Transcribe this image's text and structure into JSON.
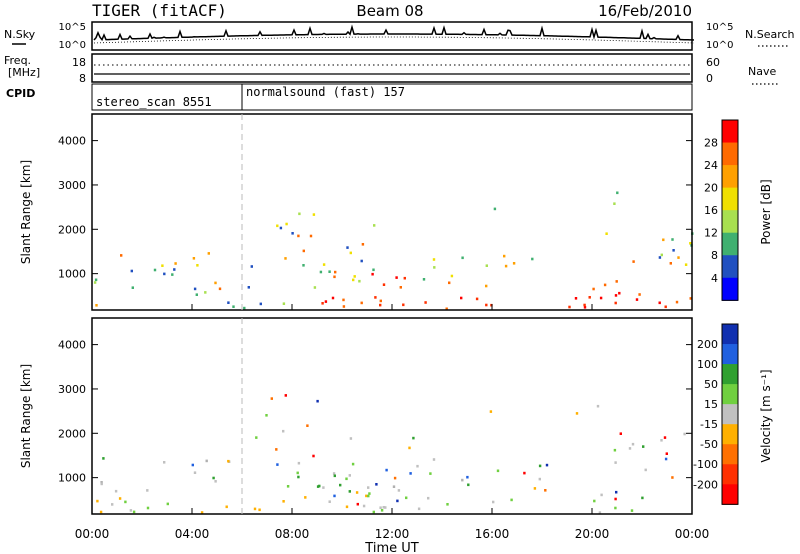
{
  "header": {
    "station": "TIGER (fitACF)",
    "beam": "Beam 08",
    "date": "16/Feb/2010"
  },
  "noise_panel": {
    "left_label": "N.Sky",
    "right_label": "N.Search",
    "left_ticks": [
      "10^5",
      "10^0"
    ],
    "right_ticks": [
      "10^5",
      "10^0"
    ]
  },
  "freq_panel": {
    "left_label_line1": "Freq.",
    "left_label_line2": "[MHz]",
    "right_label": "Nave",
    "left_ticks": [
      "18",
      "8"
    ],
    "right_ticks": [
      "60",
      "0"
    ]
  },
  "cpid_panel": {
    "label": "CPID",
    "segments": [
      {
        "name": "stereo_scan 8551"
      },
      {
        "name": "normalsound (fast) 157"
      }
    ]
  },
  "chart_data": [
    {
      "type": "heatmap",
      "ylabel": "Slant Range [km]",
      "yticks": [
        1000,
        2000,
        3000,
        4000
      ],
      "ylim": [
        180,
        4600
      ],
      "xticks": [
        "00:00",
        "04:00",
        "08:00",
        "12:00",
        "16:00",
        "20:00",
        "00:00"
      ],
      "xlim_hours": [
        0,
        24
      ],
      "colorbar": {
        "label": "Power [dB]",
        "ticks": [
          "28",
          "24",
          "20",
          "16",
          "12",
          "8",
          "4"
        ],
        "colors": [
          "#ff0000",
          "#ff6a00",
          "#ffa000",
          "#f0e000",
          "#a8e050",
          "#40b070",
          "#2050c0",
          "#0000ff"
        ]
      }
    },
    {
      "type": "heatmap",
      "ylabel": "Slant Range [km]",
      "yticks": [
        1000,
        2000,
        3000,
        4000
      ],
      "ylim": [
        180,
        4600
      ],
      "xticks": [
        "00:00",
        "04:00",
        "08:00",
        "12:00",
        "16:00",
        "20:00",
        "00:00"
      ],
      "xlim_hours": [
        0,
        24
      ],
      "xlabel": "Time UT",
      "colorbar": {
        "label": "Velocity",
        "ticks": [
          "200",
          "100",
          "50",
          "15",
          "-15",
          "-50",
          "-100",
          "-200"
        ],
        "colors": [
          "#1030b0",
          "#2060e0",
          "#30a030",
          "#70d040",
          "#c0c0c0",
          "#ffb000",
          "#ff7000",
          "#ff3000",
          "#ff0000"
        ]
      }
    }
  ]
}
